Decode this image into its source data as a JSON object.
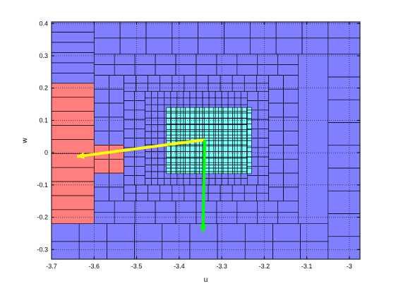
{
  "chart_data": {
    "type": "heatmap",
    "title": "",
    "xlabel": "u",
    "ylabel": "w",
    "xlim": [
      -3.7,
      -2.975
    ],
    "ylim": [
      -0.33,
      0.405
    ],
    "xticks": [
      -3.7,
      -3.6,
      -3.5,
      -3.4,
      -3.3,
      -3.2,
      -3.1,
      -3.0
    ],
    "xtick_labels": [
      "-3.7",
      "-3.6",
      "-3.5",
      "-3.4",
      "-3.3",
      "-3.2",
      "-3.1",
      "-3"
    ],
    "yticks": [
      -0.3,
      -0.2,
      -0.1,
      0,
      0.1,
      0.2,
      0.3,
      0.4
    ],
    "ytick_labels": [
      "-0.3",
      "-0.2",
      "-0.1",
      "0",
      "0.1",
      "0.2",
      "0.3",
      "0.4"
    ],
    "grid": "dotted",
    "colors": {
      "outer_cells": "#7f7fff",
      "selected_cells": "#ff7f7f",
      "inner_cells": "#7fffff",
      "cell_edge": "#000000",
      "grid_line": "#000000",
      "yellow_arrow": "#ffff00",
      "green_arrow": "#00ff00"
    },
    "regions": [
      {
        "name": "outer",
        "color": "outer_cells",
        "x": [
          -3.7,
          -2.975
        ],
        "y": [
          -0.33,
          0.405
        ]
      },
      {
        "name": "selected-left",
        "color": "selected_cells",
        "x": [
          -3.7,
          -3.6
        ],
        "y": [
          -0.22,
          0.215
        ]
      },
      {
        "name": "selected-step",
        "color": "selected_cells",
        "x": [
          -3.6,
          -3.53
        ],
        "y": [
          -0.065,
          0.025
        ]
      },
      {
        "name": "inner",
        "color": "inner_cells",
        "x": [
          -3.43,
          -3.23
        ],
        "y": [
          -0.065,
          0.14
        ]
      }
    ],
    "cells": [
      {
        "name": "top-band",
        "x": [
          -3.6,
          -3.05
        ],
        "y": [
          0.305,
          0.405
        ],
        "nx": 9,
        "ny": 2
      },
      {
        "name": "top-right",
        "x": [
          -3.05,
          -2.975
        ],
        "y": [
          0.305,
          0.405
        ],
        "nx": 1,
        "ny": 2
      },
      {
        "name": "left-upper",
        "x": [
          -3.7,
          -3.6
        ],
        "y": [
          0.215,
          0.405
        ],
        "nx": 1,
        "ny": 6
      },
      {
        "name": "left-selected",
        "x": [
          -3.7,
          -3.6
        ],
        "y": [
          -0.22,
          0.215
        ],
        "nx": 1,
        "ny": 10
      },
      {
        "name": "bottom-band",
        "x": [
          -3.7,
          -3.05
        ],
        "y": [
          -0.33,
          -0.22
        ],
        "nx": 10,
        "ny": 2
      },
      {
        "name": "right-col",
        "x": [
          -3.05,
          -2.975
        ],
        "y": [
          -0.33,
          0.305
        ],
        "nx": 1,
        "ny": 9
      },
      {
        "name": "ring1-top",
        "x": [
          -3.6,
          -3.12
        ],
        "y": [
          0.24,
          0.305
        ],
        "nx": 10,
        "ny": 2
      },
      {
        "name": "ring1-bottom",
        "x": [
          -3.6,
          -3.12
        ],
        "y": [
          -0.22,
          -0.15
        ],
        "nx": 10,
        "ny": 2
      },
      {
        "name": "ring1-left",
        "x": [
          -3.6,
          -3.53
        ],
        "y": [
          -0.15,
          0.24
        ],
        "nx": 2,
        "ny": 9
      },
      {
        "name": "ring1-right",
        "x": [
          -3.19,
          -3.12
        ],
        "y": [
          -0.15,
          0.24
        ],
        "nx": 2,
        "ny": 9
      },
      {
        "name": "ring2-top",
        "x": [
          -3.53,
          -3.19
        ],
        "y": [
          0.19,
          0.24
        ],
        "nx": 12,
        "ny": 2
      },
      {
        "name": "ring2-bottom",
        "x": [
          -3.53,
          -3.19
        ],
        "y": [
          -0.15,
          -0.1
        ],
        "nx": 12,
        "ny": 2
      },
      {
        "name": "ring2-left",
        "x": [
          -3.53,
          -3.48
        ],
        "y": [
          -0.1,
          0.19
        ],
        "nx": 2,
        "ny": 10
      },
      {
        "name": "ring2-right",
        "x": [
          -3.24,
          -3.19
        ],
        "y": [
          -0.1,
          0.19
        ],
        "nx": 2,
        "ny": 10
      },
      {
        "name": "ring3",
        "x": [
          -3.48,
          -3.24
        ],
        "y": [
          -0.1,
          0.19
        ],
        "nx": 16,
        "ny": 14
      },
      {
        "name": "inner-fine",
        "x": [
          -3.43,
          -3.23
        ],
        "y": [
          -0.065,
          0.14
        ],
        "nx": 18,
        "ny": 12
      }
    ],
    "arrows": [
      {
        "name": "yellow-arrow",
        "color": "yellow_arrow",
        "from": [
          -3.34,
          0.04
        ],
        "to": [
          -3.64,
          -0.012
        ]
      },
      {
        "name": "green-arrow",
        "color": "green_arrow",
        "from": [
          -3.34,
          0.04
        ],
        "to": [
          -3.344,
          -0.245
        ]
      }
    ]
  }
}
